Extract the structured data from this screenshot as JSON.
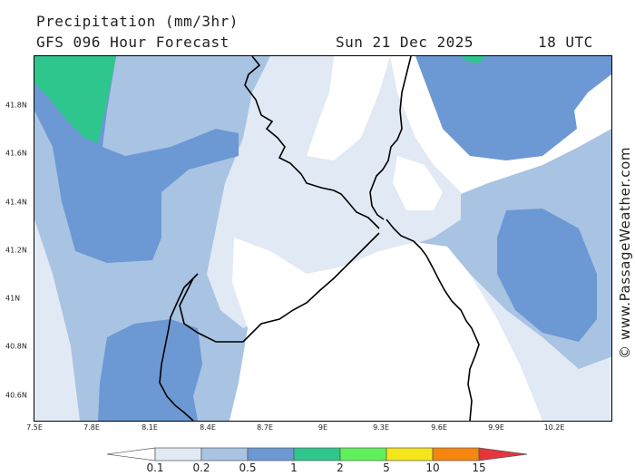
{
  "header": {
    "title": "Precipitation (mm/3hr)",
    "subtitle": "GFS 096 Hour Forecast",
    "date": "Sun 21 Dec 2025",
    "time": "18 UTC"
  },
  "map": {
    "x_ticks": [
      "7.5E",
      "7.8E",
      "8.1E",
      "8.4E",
      "8.7E",
      "9E",
      "9.3E",
      "9.6E",
      "9.9E",
      "10.2E"
    ],
    "y_ticks": [
      "41.8N",
      "41.6N",
      "41.4N",
      "41.2N",
      "41N",
      "40.8N",
      "40.6N"
    ],
    "x_range": [
      7.5,
      10.5
    ],
    "y_range": [
      40.5,
      42.0
    ],
    "coastline_color": "#000000"
  },
  "credit": "© www.PassageWeather.com",
  "colorbar": {
    "labels": [
      "0.1",
      "0.2",
      "0.5",
      "1",
      "2",
      "5",
      "10",
      "15"
    ],
    "colors": [
      "#ffffff",
      "#e1e9f5",
      "#a9c3e3",
      "#6c99d4",
      "#2fc68e",
      "#60f05a",
      "#f4e61a",
      "#f6860f",
      "#e3363d"
    ]
  }
}
